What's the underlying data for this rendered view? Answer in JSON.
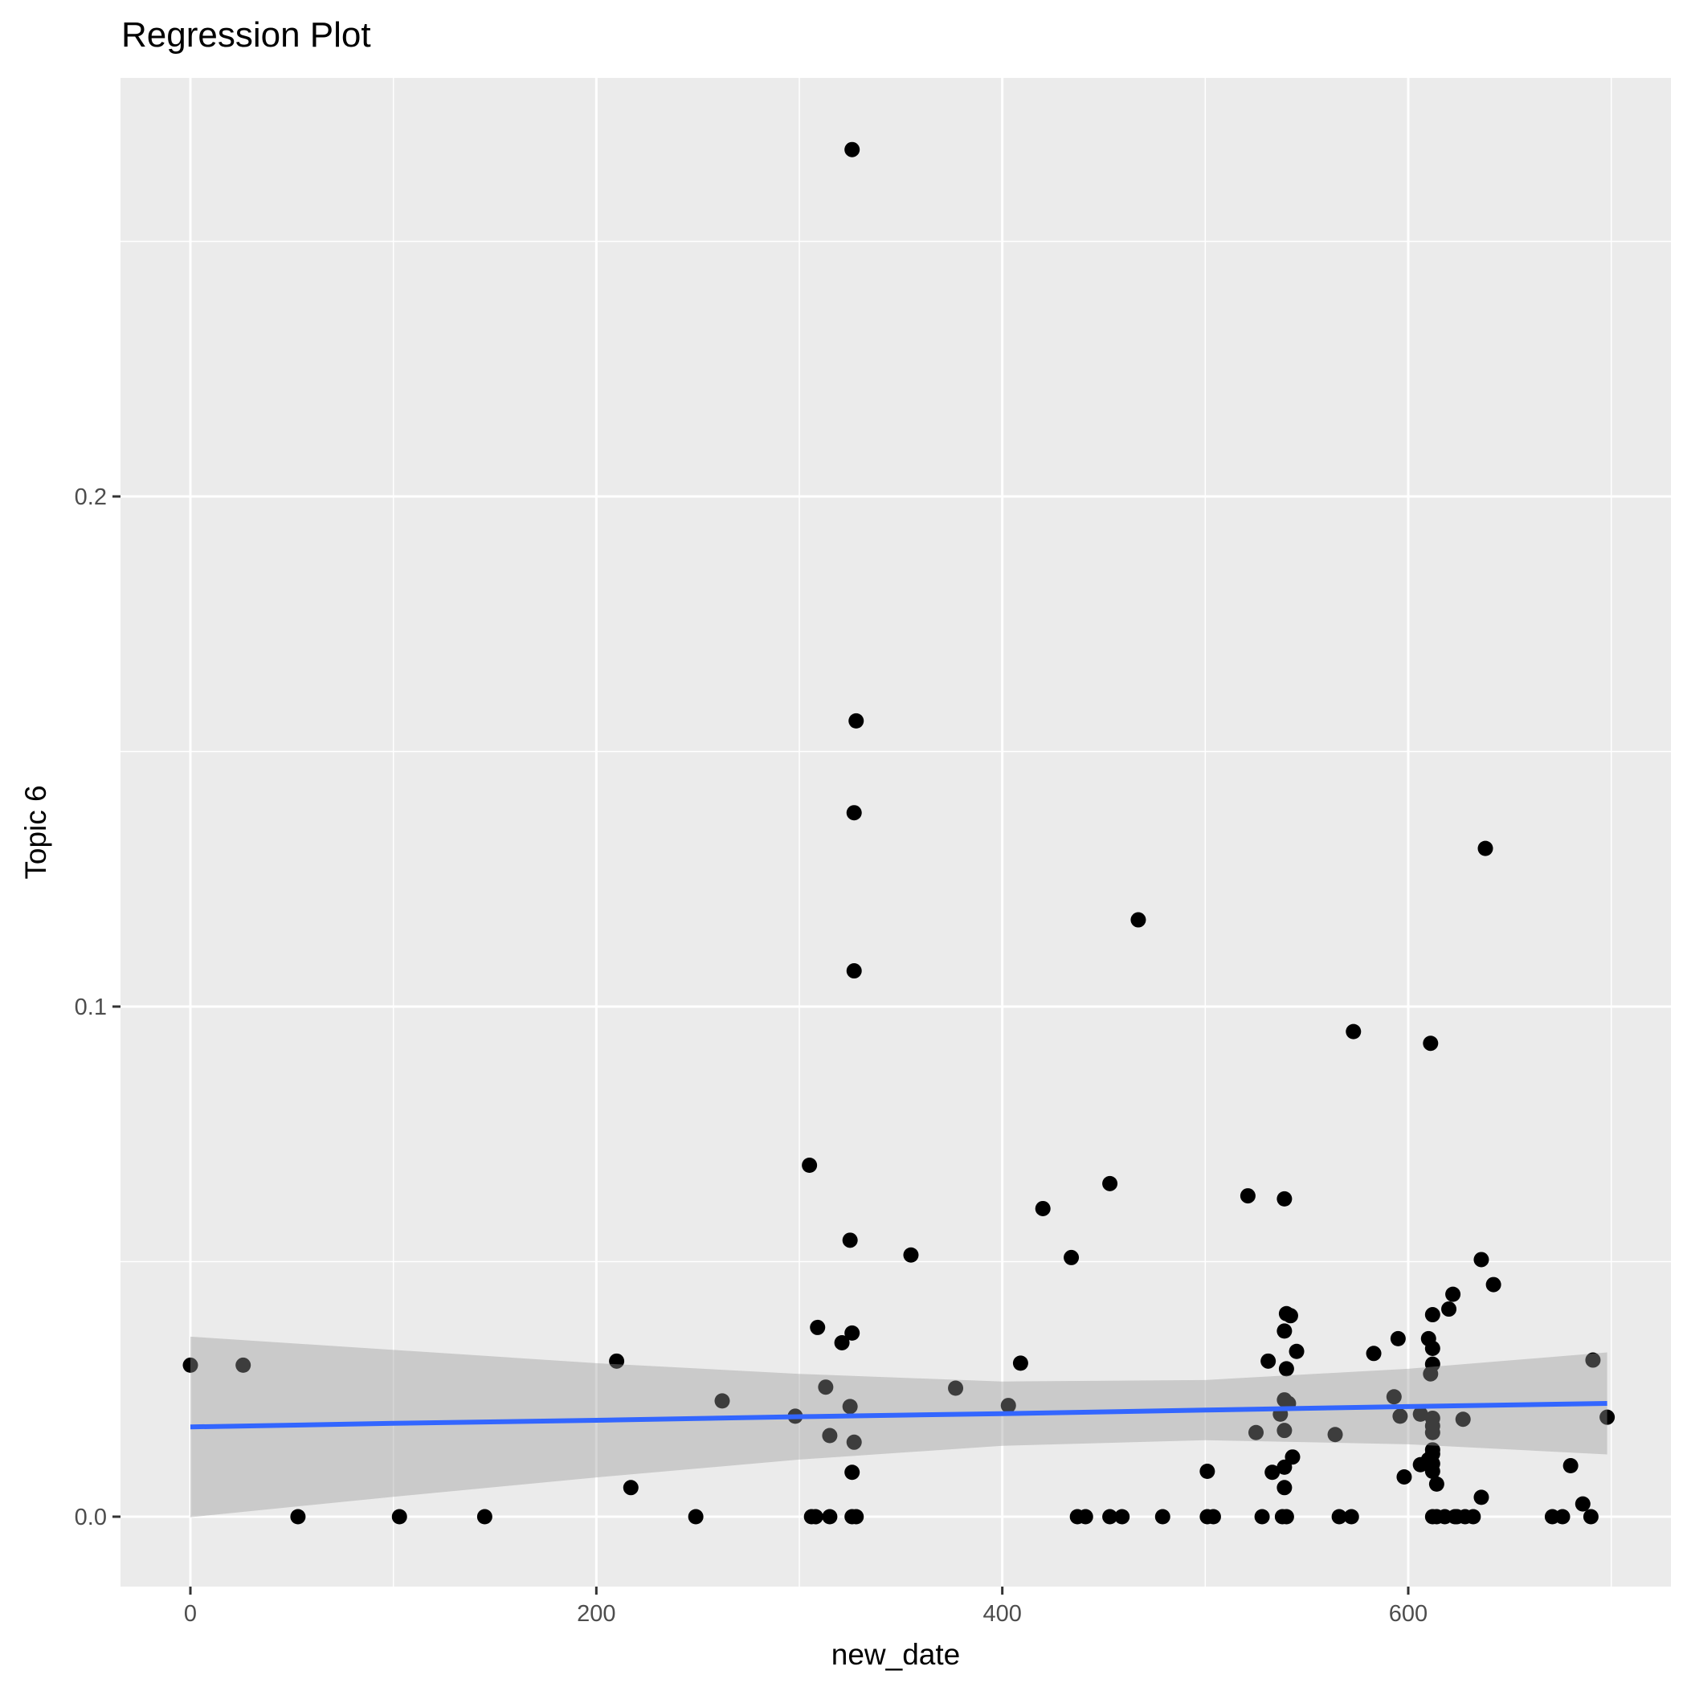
{
  "chart_data": {
    "type": "scatter",
    "title": "Regression Plot",
    "xlabel": "new_date",
    "ylabel": "Topic 6",
    "xlim": [
      -35,
      733
    ],
    "ylim": [
      -0.0135,
      0.2815
    ],
    "x_ticks": [
      0,
      200,
      400,
      600
    ],
    "x_tick_labels": [
      "0",
      "200",
      "400",
      "600"
    ],
    "y_ticks": [
      0.0,
      0.1,
      0.2
    ],
    "y_tick_labels": [
      "0.0",
      "0.1",
      "0.2"
    ],
    "grid": true,
    "background": "#EBEBEB",
    "colors": {
      "points": "#000000",
      "regression_line": "#3366FF",
      "confidence_band": "#999999"
    },
    "points": [
      [
        0,
        0.0297
      ],
      [
        26,
        0.0297
      ],
      [
        53,
        0
      ],
      [
        103,
        0
      ],
      [
        145,
        0
      ],
      [
        210,
        0.0305
      ],
      [
        217,
        0.0057
      ],
      [
        249,
        0
      ],
      [
        262,
        0.0227
      ],
      [
        298,
        0.0197
      ],
      [
        305,
        0.0689
      ],
      [
        306,
        0
      ],
      [
        308,
        0
      ],
      [
        309,
        0.0371
      ],
      [
        313,
        0.0254
      ],
      [
        315,
        0
      ],
      [
        315,
        0.0159
      ],
      [
        321,
        0.0341
      ],
      [
        325,
        0.0216
      ],
      [
        325,
        0.0542
      ],
      [
        326,
        0.036
      ],
      [
        326,
        0.268
      ],
      [
        326,
        0.0087
      ],
      [
        326,
        0
      ],
      [
        328,
        0
      ],
      [
        327,
        0.0146
      ],
      [
        327,
        0.107
      ],
      [
        327,
        0.138
      ],
      [
        328,
        0.156
      ],
      [
        355,
        0.0513
      ],
      [
        377,
        0.0252
      ],
      [
        403,
        0.0218
      ],
      [
        409,
        0.0301
      ],
      [
        420,
        0.0604
      ],
      [
        434,
        0.0508
      ],
      [
        437,
        0
      ],
      [
        441,
        0
      ],
      [
        453,
        0.0653
      ],
      [
        453,
        0
      ],
      [
        459,
        0
      ],
      [
        467,
        0.117
      ],
      [
        479,
        0
      ],
      [
        501,
        0.0089
      ],
      [
        501,
        0
      ],
      [
        504,
        0
      ],
      [
        521,
        0.0629
      ],
      [
        525,
        0.0165
      ],
      [
        528,
        0
      ],
      [
        531,
        0.0305
      ],
      [
        533,
        0.0087
      ],
      [
        537,
        0.0201
      ],
      [
        538,
        0
      ],
      [
        540,
        0
      ],
      [
        539,
        0.0623
      ],
      [
        539,
        0.0364
      ],
      [
        539,
        0.0057
      ],
      [
        539,
        0.0097
      ],
      [
        539,
        0.0229
      ],
      [
        539,
        0.0169
      ],
      [
        540,
        0.029
      ],
      [
        540,
        0.0398
      ],
      [
        541,
        0.0222
      ],
      [
        542,
        0.0394
      ],
      [
        543,
        0.0117
      ],
      [
        545,
        0.0324
      ],
      [
        564,
        0.0161
      ],
      [
        566,
        0
      ],
      [
        572,
        0
      ],
      [
        573,
        0.0951
      ],
      [
        583,
        0.032
      ],
      [
        593,
        0.0235
      ],
      [
        595,
        0.0349
      ],
      [
        596,
        0.0197
      ],
      [
        598,
        0.0078
      ],
      [
        606,
        0.0102
      ],
      [
        606,
        0.0201
      ],
      [
        610,
        0.0112
      ],
      [
        610,
        0.0349
      ],
      [
        611,
        0.0928
      ],
      [
        611,
        0.028
      ],
      [
        612,
        0.0123
      ],
      [
        612,
        0.0104
      ],
      [
        612,
        0
      ],
      [
        614,
        0
      ],
      [
        612,
        0.033
      ],
      [
        612,
        0.0396
      ],
      [
        612,
        0.0299
      ],
      [
        612,
        0.0193
      ],
      [
        612,
        0.0178
      ],
      [
        612,
        0.0165
      ],
      [
        612,
        0.0131
      ],
      [
        612,
        0.0089
      ],
      [
        614,
        0.0064
      ],
      [
        618,
        0
      ],
      [
        620,
        0.0407
      ],
      [
        622,
        0.0436
      ],
      [
        623,
        0
      ],
      [
        624,
        0
      ],
      [
        627,
        0.0191
      ],
      [
        628,
        0
      ],
      [
        632,
        0
      ],
      [
        636,
        0.0038
      ],
      [
        636,
        0.0504
      ],
      [
        638,
        0.131
      ],
      [
        642,
        0.0455
      ],
      [
        671,
        0
      ],
      [
        676,
        0
      ],
      [
        680,
        0.01
      ],
      [
        686,
        0.0025
      ],
      [
        690,
        0
      ],
      [
        691,
        0.0307
      ],
      [
        698,
        0.0195
      ]
    ],
    "regression": {
      "x": [
        0,
        100,
        200,
        300,
        400,
        500,
        600,
        698
      ],
      "fit": [
        0.0176,
        0.0183,
        0.0189,
        0.0196,
        0.0202,
        0.0209,
        0.0216,
        0.0222
      ],
      "lower": [
        -0.0001,
        0.0039,
        0.0077,
        0.0112,
        0.0139,
        0.015,
        0.0142,
        0.0122
      ],
      "upper": [
        0.0353,
        0.0327,
        0.0301,
        0.028,
        0.0265,
        0.0268,
        0.029,
        0.0322
      ]
    }
  }
}
